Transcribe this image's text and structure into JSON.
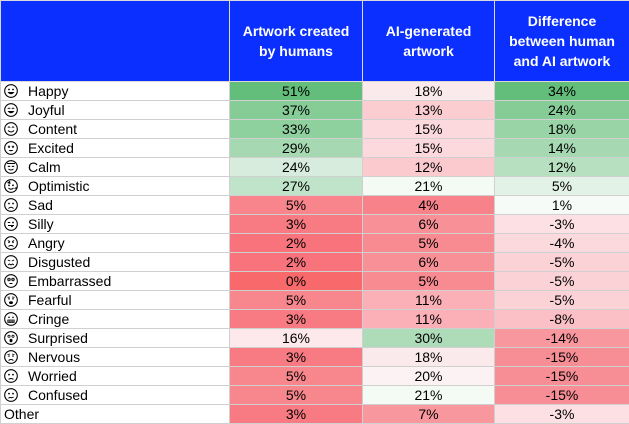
{
  "chart_data": {
    "type": "table",
    "columns": [
      "Artwork created by humans",
      "AI-generated artwork",
      "Difference between human and AI artwork"
    ],
    "rows": [
      {
        "label": "Happy",
        "icon": "grinning-face-icon",
        "values": [
          "51%",
          "18%",
          "34%"
        ],
        "colors": [
          "#63be7b",
          "#fbeaec",
          "#63be7b"
        ]
      },
      {
        "label": "Joyful",
        "icon": "beaming-face-icon",
        "values": [
          "37%",
          "13%",
          "24%"
        ],
        "colors": [
          "#86cc97",
          "#fbcdd1",
          "#86cc97"
        ]
      },
      {
        "label": "Content",
        "icon": "smiling-face-icon",
        "values": [
          "33%",
          "15%",
          "18%"
        ],
        "colors": [
          "#8fd09f",
          "#fcd9dc",
          "#99d4a7"
        ]
      },
      {
        "label": "Excited",
        "icon": "star-struck-face-icon",
        "values": [
          "29%",
          "15%",
          "14%"
        ],
        "colors": [
          "#a6d9b2",
          "#fcd9dc",
          "#a6d9b2"
        ]
      },
      {
        "label": "Calm",
        "icon": "relieved-face-icon",
        "values": [
          "24%",
          "12%",
          "12%"
        ],
        "colors": [
          "#d7ecdc",
          "#fbcacf",
          "#b6e0c0"
        ]
      },
      {
        "label": "Optimistic",
        "icon": "partying-face-icon",
        "values": [
          "27%",
          "21%",
          "5%"
        ],
        "colors": [
          "#c0e4c9",
          "#f4fbf5",
          "#e3f2e6"
        ]
      },
      {
        "label": "Sad",
        "icon": "frowning-face-icon",
        "values": [
          "5%",
          "4%",
          "1%"
        ],
        "colors": [
          "#f8848c",
          "#f8828a",
          "#f6fbf7"
        ]
      },
      {
        "label": "Silly",
        "icon": "winking-tongue-face-icon",
        "values": [
          "3%",
          "6%",
          "-3%"
        ],
        "colors": [
          "#f87a83",
          "#f89097",
          "#fce0e3"
        ]
      },
      {
        "label": "Angry",
        "icon": "angry-face-icon",
        "values": [
          "2%",
          "5%",
          "-4%"
        ],
        "colors": [
          "#f8737c",
          "#f88a91",
          "#fbd9dc"
        ]
      },
      {
        "label": "Disgusted",
        "icon": "disgusted-face-icon",
        "values": [
          "2%",
          "6%",
          "-5%"
        ],
        "colors": [
          "#f8737c",
          "#f89097",
          "#fbd3d6"
        ]
      },
      {
        "label": "Embarrassed",
        "icon": "flushed-face-icon",
        "values": [
          "0%",
          "5%",
          "-5%"
        ],
        "colors": [
          "#f8696b",
          "#f88a91",
          "#fbd3d6"
        ]
      },
      {
        "label": "Fearful",
        "icon": "fearful-face-icon",
        "values": [
          "5%",
          "11%",
          "-5%"
        ],
        "colors": [
          "#f8868d",
          "#fab0b6",
          "#fbd3d6"
        ]
      },
      {
        "label": "Cringe",
        "icon": "grimacing-face-icon",
        "values": [
          "3%",
          "11%",
          "-8%"
        ],
        "colors": [
          "#f87a83",
          "#fab0b6",
          "#fac0c5"
        ]
      },
      {
        "label": "Surprised",
        "icon": "astonished-face-icon",
        "values": [
          "16%",
          "30%",
          "-14%"
        ],
        "colors": [
          "#fde9ec",
          "#aedcb9",
          "#f9979e"
        ]
      },
      {
        "label": "Nervous",
        "icon": "anxious-face-icon",
        "values": [
          "3%",
          "18%",
          "-15%"
        ],
        "colors": [
          "#f87a83",
          "#fbeaec",
          "#f88e95"
        ]
      },
      {
        "label": "Worried",
        "icon": "worried-face-icon",
        "values": [
          "5%",
          "20%",
          "-15%"
        ],
        "colors": [
          "#f8868d",
          "#fcf2f3",
          "#f88e95"
        ]
      },
      {
        "label": "Confused",
        "icon": "confused-face-icon",
        "values": [
          "5%",
          "21%",
          "-15%"
        ],
        "colors": [
          "#f8868d",
          "#f4fbf5",
          "#f88e95"
        ]
      },
      {
        "label": "Other",
        "icon": "",
        "values": [
          "3%",
          "7%",
          "-3%"
        ],
        "colors": [
          "#f87a83",
          "#f9979e",
          "#fce0e3"
        ]
      }
    ]
  },
  "colors": {
    "header_bg": "#0a2fff",
    "header_text": "#ffffff",
    "grid": "#d0d0d0"
  }
}
